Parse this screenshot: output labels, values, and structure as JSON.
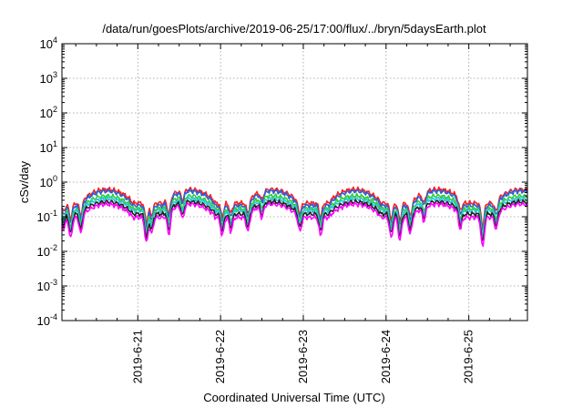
{
  "chart_data": {
    "type": "line",
    "title": "/data/run/goesPlots/archive/2019-06-25/17:00/flux/../bryn/5daysEarth.plot",
    "xlabel": "Coordinated Universal Time (UTC)",
    "ylabel": "cSv/day",
    "yscale": "log",
    "ylim": [
      0.0001,
      10000
    ],
    "xlim": [
      "2019-06-20 02:00",
      "2019-06-25 17:00"
    ],
    "grid": true,
    "x_ticks": [
      "2019-6-21",
      "2019-6-22",
      "2019-6-23",
      "2019-6-24",
      "2019-6-25"
    ],
    "y_ticks": [
      {
        "base": "10",
        "exp": "-4"
      },
      {
        "base": "10",
        "exp": "-3"
      },
      {
        "base": "10",
        "exp": "-2"
      },
      {
        "base": "10",
        "exp": "-1"
      },
      {
        "base": "10",
        "exp": "0"
      },
      {
        "base": "10",
        "exp": "1"
      },
      {
        "base": "10",
        "exp": "2"
      },
      {
        "base": "10",
        "exp": "3"
      },
      {
        "base": "10",
        "exp": "4"
      }
    ],
    "dips": [
      {
        "x": "2019-06-20 02:30",
        "depth": 0.25
      },
      {
        "x": "2019-06-20 04:30",
        "depth": 0.45
      },
      {
        "x": "2019-06-20 07:30",
        "depth": 0.35
      },
      {
        "x": "2019-06-21 02:30",
        "depth": 0.55
      },
      {
        "x": "2019-06-21 04:00",
        "depth": 0.35
      },
      {
        "x": "2019-06-21 09:00",
        "depth": 0.5
      },
      {
        "x": "2019-06-21 13:00",
        "depth": 0.3
      },
      {
        "x": "2019-06-22 00:30",
        "depth": 0.4
      },
      {
        "x": "2019-06-22 03:00",
        "depth": 0.3
      },
      {
        "x": "2019-06-22 08:00",
        "depth": 0.35
      },
      {
        "x": "2019-06-22 12:00",
        "depth": 0.25
      },
      {
        "x": "2019-06-22 23:00",
        "depth": 0.3
      },
      {
        "x": "2019-06-23 05:00",
        "depth": 0.4
      },
      {
        "x": "2019-06-24 01:30",
        "depth": 0.45
      },
      {
        "x": "2019-06-24 04:00",
        "depth": 0.5
      },
      {
        "x": "2019-06-24 07:00",
        "depth": 0.35
      },
      {
        "x": "2019-06-24 11:00",
        "depth": 0.3
      },
      {
        "x": "2019-06-24 21:30",
        "depth": 0.35
      },
      {
        "x": "2019-06-25 04:00",
        "depth": 0.65
      },
      {
        "x": "2019-06-25 08:00",
        "depth": 0.3
      }
    ],
    "series": [
      {
        "color": "#ff1f1f",
        "day": 0.62,
        "night": 0.25
      },
      {
        "color": "#2a60d8",
        "day": 0.55,
        "night": 0.21
      },
      {
        "color": "#33cc33",
        "day": 0.4,
        "night": 0.17
      },
      {
        "color": "#28c8d8",
        "day": 0.33,
        "night": 0.15
      },
      {
        "color": "#222222",
        "day": 0.27,
        "night": 0.12
      },
      {
        "color": "#ff00ff",
        "day": 0.23,
        "night": 0.095
      }
    ]
  }
}
